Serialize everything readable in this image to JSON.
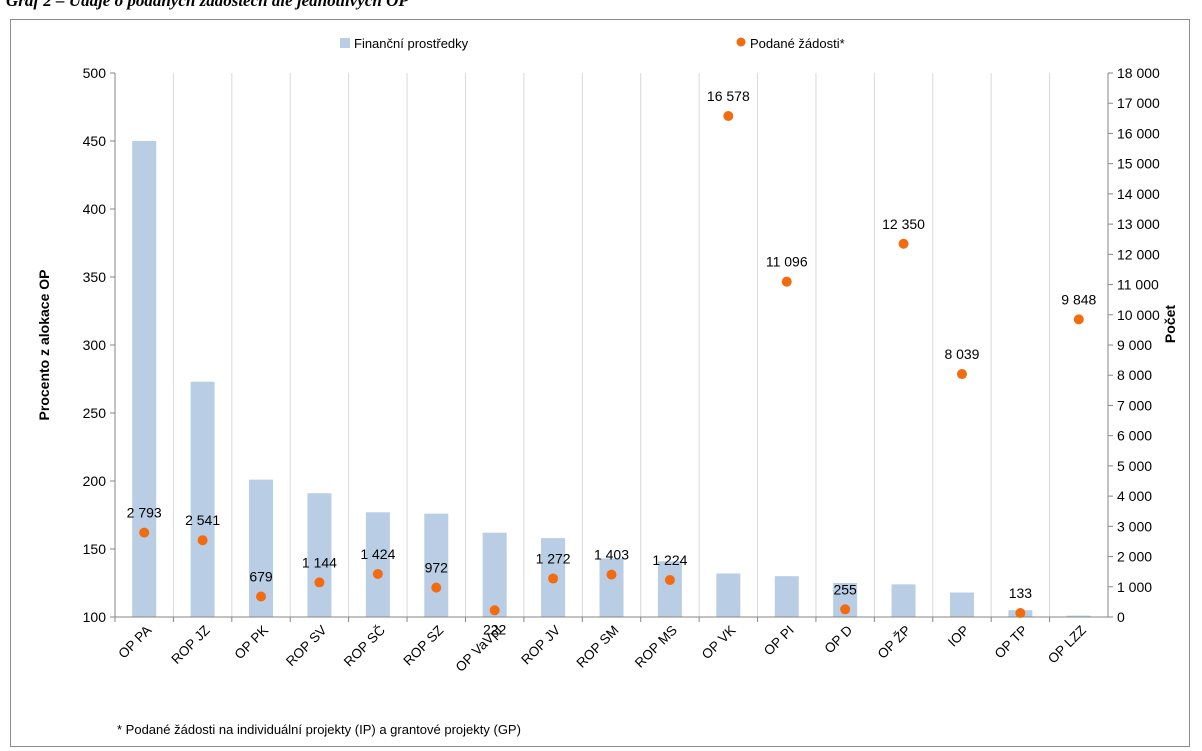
{
  "heading": "Graf 2 – Údaje o podaných žádostech dle jednotlivých OP",
  "footnote": "* Podané žádosti na individuální projekty (IP) a grantové projekty (GP)",
  "colors": {
    "bars": "#b9cde4",
    "dots": "#f26b0f",
    "axis": "#868686",
    "grid": "#d9d9d9"
  },
  "chart_data": {
    "type": "bar",
    "categories": [
      "OP PA",
      "ROP JZ",
      "OP PK",
      "ROP SV",
      "ROP SČ",
      "ROP SZ",
      "OP VaVpI",
      "ROP JV",
      "ROP SM",
      "ROP MS",
      "OP VK",
      "OP PI",
      "OP D",
      "OP ŽP",
      "IOP",
      "OP TP",
      "OP LZZ"
    ],
    "series": [
      {
        "name": "Finanční prostředky",
        "type": "bar",
        "axis": "left",
        "values": [
          450,
          273,
          201,
          191,
          177,
          176,
          162,
          158,
          143,
          141,
          132,
          130,
          125,
          124,
          118,
          105,
          101
        ]
      },
      {
        "name": "Podané žádosti*",
        "type": "scatter",
        "axis": "right",
        "values": [
          2793,
          2541,
          679,
          1144,
          1424,
          972,
          222,
          1272,
          1403,
          1224,
          16578,
          11096,
          255,
          12350,
          8039,
          133,
          9848
        ]
      }
    ],
    "data_labels": [
      "2 793",
      "2 541",
      "679",
      "1 144",
      "1 424",
      "972",
      "222",
      "1 272",
      "1 403",
      "1 224",
      "16 578",
      "11 096",
      "255",
      "12 350",
      "8 039",
      "133",
      "9 848"
    ],
    "ylabel": "Procento z alokace OP",
    "y2label": "Počet",
    "ylim": [
      100,
      500
    ],
    "y2lim": [
      0,
      18000
    ],
    "yticks": [
      "500",
      "450",
      "400",
      "350",
      "300",
      "250",
      "200",
      "150",
      "100"
    ],
    "y2ticks": [
      "18 000",
      "17 000",
      "16 000",
      "15 000",
      "14 000",
      "13 000",
      "12 000",
      "11 000",
      "10 000",
      "9 000",
      "8 000",
      "7 000",
      "6 000",
      "5 000",
      "4 000",
      "3 000",
      "2 000",
      "1 000",
      "0"
    ],
    "grid": "vertical",
    "legend": "top"
  }
}
